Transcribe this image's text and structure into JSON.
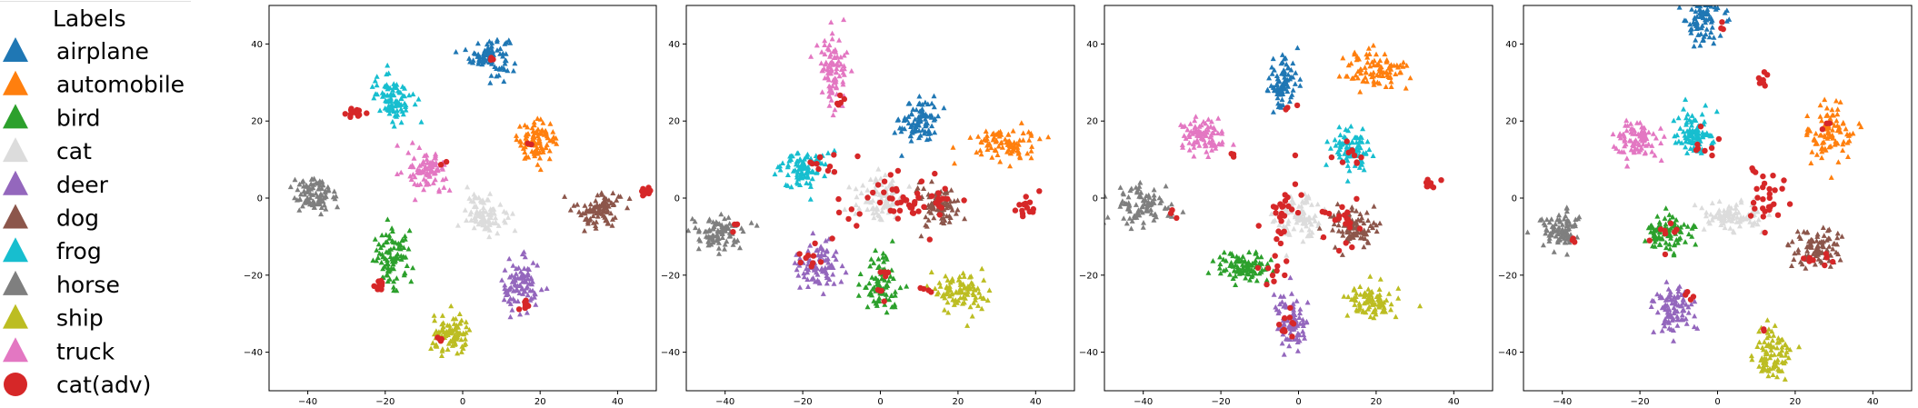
{
  "legend": {
    "title": "Labels",
    "entries": [
      {
        "label": "airplane",
        "color": "#1f77b4",
        "marker": "triangle"
      },
      {
        "label": "automobile",
        "color": "#ff7f0e",
        "marker": "triangle"
      },
      {
        "label": "bird",
        "color": "#2ca02c",
        "marker": "triangle"
      },
      {
        "label": "cat",
        "color": "#dcdcdc",
        "marker": "triangle"
      },
      {
        "label": "deer",
        "color": "#9467bd",
        "marker": "triangle"
      },
      {
        "label": "dog",
        "color": "#8c564b",
        "marker": "triangle"
      },
      {
        "label": "frog",
        "color": "#17becf",
        "marker": "triangle"
      },
      {
        "label": "horse",
        "color": "#7f7f7f",
        "marker": "triangle"
      },
      {
        "label": "ship",
        "color": "#bcbd22",
        "marker": "triangle"
      },
      {
        "label": "truck",
        "color": "#e377c2",
        "marker": "triangle"
      },
      {
        "label": "cat(adv)",
        "color": "#d62728",
        "marker": "circle"
      }
    ]
  },
  "chart_data": [
    {
      "type": "scatter",
      "xlim": [
        -50,
        50
      ],
      "ylim": [
        -50,
        50
      ],
      "xticks": [
        -40,
        -20,
        0,
        20,
        40
      ],
      "yticks": [
        -40,
        -20,
        0,
        20,
        40
      ],
      "clusters": [
        {
          "label": "airplane",
          "cx": 7,
          "cy": 37,
          "sx": 2.5,
          "sy": 2.5
        },
        {
          "label": "automobile",
          "cx": 19,
          "cy": 15,
          "sx": 2.5,
          "sy": 2.5
        },
        {
          "label": "bird",
          "cx": -18,
          "cy": -16,
          "sx": 2.5,
          "sy": 3.5
        },
        {
          "label": "cat",
          "cx": 6,
          "cy": -4,
          "sx": 2.5,
          "sy": 2.5
        },
        {
          "label": "deer",
          "cx": 15,
          "cy": -23,
          "sx": 2.5,
          "sy": 3.5
        },
        {
          "label": "dog",
          "cx": 35,
          "cy": -3,
          "sx": 3,
          "sy": 2.5
        },
        {
          "label": "frog",
          "cx": -18,
          "cy": 26,
          "sx": 2.5,
          "sy": 3
        },
        {
          "label": "horse",
          "cx": -38,
          "cy": 1,
          "sx": 3,
          "sy": 2.5
        },
        {
          "label": "ship",
          "cx": -3,
          "cy": -36,
          "sx": 2.5,
          "sy": 2.5
        },
        {
          "label": "truck",
          "cx": -9,
          "cy": 7,
          "sx": 2.5,
          "sy": 2.5
        }
      ],
      "adv_points": [
        {
          "cx": -28,
          "cy": 22,
          "sx": 1.2,
          "sy": 0.6,
          "n": 12
        },
        {
          "cx": -21,
          "cy": -23,
          "sx": 1,
          "sy": 1,
          "n": 14
        },
        {
          "cx": 47,
          "cy": 2,
          "sx": 1,
          "sy": 0.6,
          "n": 10
        },
        {
          "cx": 16,
          "cy": -28,
          "sx": 1,
          "sy": 1,
          "n": 10
        },
        {
          "cx": -6,
          "cy": -37,
          "sx": 0.6,
          "sy": 0.6,
          "n": 4
        },
        {
          "cx": 8,
          "cy": 36,
          "sx": 0.6,
          "sy": 0.6,
          "n": 3
        },
        {
          "cx": 17,
          "cy": 13,
          "sx": 0.5,
          "sy": 0.5,
          "n": 2
        },
        {
          "cx": -5,
          "cy": 9,
          "sx": 0.5,
          "sy": 0.5,
          "n": 2
        }
      ]
    },
    {
      "type": "scatter",
      "xlim": [
        -50,
        50
      ],
      "ylim": [
        -50,
        50
      ],
      "xticks": [
        -40,
        -20,
        0,
        20,
        40
      ],
      "yticks": [
        -40,
        -20,
        0,
        20,
        40
      ],
      "clusters": [
        {
          "label": "airplane",
          "cx": 10,
          "cy": 20,
          "sx": 2.5,
          "sy": 3
        },
        {
          "label": "automobile",
          "cx": 32,
          "cy": 14,
          "sx": 4,
          "sy": 2.2
        },
        {
          "label": "bird",
          "cx": 0,
          "cy": -22,
          "sx": 2.5,
          "sy": 4
        },
        {
          "label": "cat",
          "cx": 0,
          "cy": 0,
          "sx": 3,
          "sy": 3
        },
        {
          "label": "deer",
          "cx": -16,
          "cy": -17,
          "sx": 3,
          "sy": 2.5
        },
        {
          "label": "dog",
          "cx": 14,
          "cy": -2,
          "sx": 3,
          "sy": 2.5
        },
        {
          "label": "frog",
          "cx": -20,
          "cy": 7,
          "sx": 3,
          "sy": 2.5
        },
        {
          "label": "horse",
          "cx": -42,
          "cy": -9,
          "sx": 3.5,
          "sy": 2
        },
        {
          "label": "ship",
          "cx": 20,
          "cy": -24,
          "sx": 3.5,
          "sy": 2.5
        },
        {
          "label": "truck",
          "cx": -12,
          "cy": 32,
          "sx": 1.8,
          "sy": 5
        }
      ],
      "adv_points": [
        {
          "cx": -15,
          "cy": 9,
          "sx": 2,
          "sy": 2,
          "n": 10
        },
        {
          "cx": -17,
          "cy": -15,
          "sx": 3,
          "sy": 2,
          "n": 10
        },
        {
          "cx": 38,
          "cy": -2,
          "sx": 1.5,
          "sy": 1.5,
          "n": 14
        },
        {
          "cx": 5,
          "cy": 0,
          "sx": 8,
          "sy": 4,
          "n": 40
        },
        {
          "cx": 10,
          "cy": -2,
          "sx": 5,
          "sy": 1.5,
          "n": 15
        },
        {
          "cx": -10,
          "cy": 25,
          "sx": 1,
          "sy": 1.5,
          "n": 5
        },
        {
          "cx": 0,
          "cy": -22,
          "sx": 2,
          "sy": 3,
          "n": 8
        },
        {
          "cx": 12,
          "cy": -24,
          "sx": 1,
          "sy": 1,
          "n": 4
        },
        {
          "cx": -37,
          "cy": -8,
          "sx": 0.8,
          "sy": 0.6,
          "n": 3
        }
      ]
    },
    {
      "type": "scatter",
      "xlim": [
        -50,
        50
      ],
      "ylim": [
        -50,
        50
      ],
      "xticks": [
        -40,
        -20,
        0,
        20,
        40
      ],
      "yticks": [
        -40,
        -20,
        0,
        20,
        40
      ],
      "clusters": [
        {
          "label": "airplane",
          "cx": -4,
          "cy": 30,
          "sx": 2,
          "sy": 3.5
        },
        {
          "label": "automobile",
          "cx": 20,
          "cy": 33,
          "sx": 4,
          "sy": 2.5
        },
        {
          "label": "bird",
          "cx": -14,
          "cy": -18,
          "sx": 3.5,
          "sy": 2
        },
        {
          "label": "cat",
          "cx": 0,
          "cy": -5,
          "sx": 3,
          "sy": 3
        },
        {
          "label": "deer",
          "cx": -2,
          "cy": -32,
          "sx": 2,
          "sy": 3.5
        },
        {
          "label": "dog",
          "cx": 14,
          "cy": -8,
          "sx": 3,
          "sy": 2.5
        },
        {
          "label": "frog",
          "cx": 13,
          "cy": 13,
          "sx": 2.5,
          "sy": 2.5
        },
        {
          "label": "horse",
          "cx": -41,
          "cy": -2,
          "sx": 4,
          "sy": 2.5
        },
        {
          "label": "ship",
          "cx": 19,
          "cy": -27,
          "sx": 3,
          "sy": 2.5
        },
        {
          "label": "truck",
          "cx": -24,
          "cy": 16,
          "sx": 3,
          "sy": 2.5
        }
      ],
      "adv_points": [
        {
          "cx": -5,
          "cy": -2,
          "sx": 3,
          "sy": 4,
          "n": 25
        },
        {
          "cx": 12,
          "cy": -6,
          "sx": 3,
          "sy": 3,
          "n": 20
        },
        {
          "cx": 34,
          "cy": 4,
          "sx": 1,
          "sy": 1.2,
          "n": 8
        },
        {
          "cx": -6,
          "cy": -19,
          "sx": 2,
          "sy": 2,
          "n": 10
        },
        {
          "cx": -3,
          "cy": -33,
          "sx": 2,
          "sy": 3,
          "n": 10
        },
        {
          "cx": 12,
          "cy": 11,
          "sx": 2,
          "sy": 1.5,
          "n": 10
        },
        {
          "cx": -32,
          "cy": -4,
          "sx": 1,
          "sy": 1,
          "n": 3
        },
        {
          "cx": -17,
          "cy": 11,
          "sx": 1,
          "sy": 1,
          "n": 3
        },
        {
          "cx": -2,
          "cy": 24,
          "sx": 0.8,
          "sy": 0.6,
          "n": 3
        }
      ]
    },
    {
      "type": "scatter",
      "xlim": [
        -50,
        50
      ],
      "ylim": [
        -50,
        50
      ],
      "xticks": [
        -40,
        -20,
        0,
        20,
        40
      ],
      "yticks": [
        -40,
        -20,
        0,
        20,
        40
      ],
      "clusters": [
        {
          "label": "airplane",
          "cx": -4,
          "cy": 46,
          "sx": 2.5,
          "sy": 3.5
        },
        {
          "label": "automobile",
          "cx": 29,
          "cy": 17,
          "sx": 3,
          "sy": 3.5
        },
        {
          "label": "bird",
          "cx": -13,
          "cy": -9,
          "sx": 3,
          "sy": 2.5
        },
        {
          "label": "cat",
          "cx": 4,
          "cy": -5,
          "sx": 4,
          "sy": 2
        },
        {
          "label": "deer",
          "cx": -11,
          "cy": -29,
          "sx": 2.5,
          "sy": 3
        },
        {
          "label": "dog",
          "cx": 25,
          "cy": -13,
          "sx": 3,
          "sy": 2.5
        },
        {
          "label": "frog",
          "cx": -6,
          "cy": 16,
          "sx": 2.5,
          "sy": 3
        },
        {
          "label": "horse",
          "cx": -41,
          "cy": -8,
          "sx": 2.5,
          "sy": 2.5
        },
        {
          "label": "ship",
          "cx": 14,
          "cy": -41,
          "sx": 2.5,
          "sy": 3.5
        },
        {
          "label": "truck",
          "cx": -21,
          "cy": 15,
          "sx": 3,
          "sy": 2.5
        }
      ],
      "adv_points": [
        {
          "cx": 11,
          "cy": 0,
          "sx": 3,
          "sy": 4,
          "n": 30
        },
        {
          "cx": 11,
          "cy": 31,
          "sx": 0.8,
          "sy": 0.8,
          "n": 8
        },
        {
          "cx": -3,
          "cy": 13,
          "sx": 2,
          "sy": 1.5,
          "n": 8
        },
        {
          "cx": 25,
          "cy": -16,
          "sx": 2,
          "sy": 1.5,
          "n": 8
        },
        {
          "cx": -13,
          "cy": -9,
          "sx": 2,
          "sy": 1.5,
          "n": 8
        },
        {
          "cx": 1,
          "cy": 44,
          "sx": 0.6,
          "sy": 0.8,
          "n": 3
        },
        {
          "cx": -8,
          "cy": -25,
          "sx": 1,
          "sy": 1,
          "n": 4
        },
        {
          "cx": 28,
          "cy": 19,
          "sx": 0.8,
          "sy": 0.8,
          "n": 3
        },
        {
          "cx": 12,
          "cy": -34,
          "sx": 0.5,
          "sy": 0.5,
          "n": 2
        },
        {
          "cx": -37,
          "cy": -11,
          "sx": 0.8,
          "sy": 0.8,
          "n": 3
        }
      ]
    }
  ]
}
